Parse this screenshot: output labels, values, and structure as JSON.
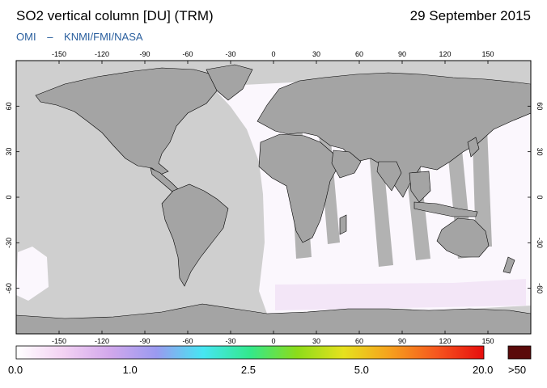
{
  "header": {
    "title": "SO2 vertical column [DU] (TRM)",
    "date": "29 September 2015",
    "credit_instrument": "OMI",
    "credit_sep": "–",
    "credit_orgs": "KNMI/FMI/NASA"
  },
  "map": {
    "projection": "equirectangular",
    "lon_range": [
      -180,
      180
    ],
    "lat_range": [
      -90,
      90
    ],
    "lon_ticks": [
      {
        "value": -150,
        "label": "-150"
      },
      {
        "value": -120,
        "label": "-120"
      },
      {
        "value": -90,
        "label": "-90"
      },
      {
        "value": -60,
        "label": "-60"
      },
      {
        "value": -30,
        "label": "-30"
      },
      {
        "value": 0,
        "label": "0"
      },
      {
        "value": 30,
        "label": "30"
      },
      {
        "value": 60,
        "label": "60"
      },
      {
        "value": 90,
        "label": "90"
      },
      {
        "value": 120,
        "label": "120"
      },
      {
        "value": 150,
        "label": "150"
      }
    ],
    "lat_ticks": [
      {
        "value": 60,
        "label": "60"
      },
      {
        "value": 30,
        "label": "30"
      },
      {
        "value": 0,
        "label": "0"
      },
      {
        "value": -30,
        "label": "-30"
      },
      {
        "value": -60,
        "label": "-60"
      }
    ],
    "colors": {
      "no_data": "#cfcfcf",
      "land": "#a4a4a4",
      "data_background": "#fbf7fd",
      "swath_gap": "#b2b2b2",
      "coast": "#000000"
    }
  },
  "colorbar": {
    "stops": [
      "#ffffff",
      "#f3d2f3",
      "#d2a8ec",
      "#9a9af0",
      "#46e6f2",
      "#33e88c",
      "#8cdc19",
      "#e6e11e",
      "#f6a01e",
      "#f6561e",
      "#e60d0d"
    ],
    "overflow_color": "#5a0a0a",
    "labels": [
      {
        "text": "0.0",
        "value": 0.0
      },
      {
        "text": "1.0",
        "value": 1.0
      },
      {
        "text": "2.5",
        "value": 2.5
      },
      {
        "text": "5.0",
        "value": 5.0
      },
      {
        "text": "20.0",
        "value": 20.0
      }
    ],
    "overflow_label": ">50"
  }
}
